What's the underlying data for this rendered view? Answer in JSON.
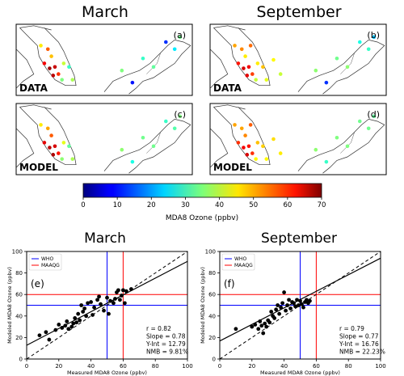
{
  "column_titles": [
    "March",
    "September"
  ],
  "maps": [
    {
      "panel": "(a)",
      "label": "DATA",
      "stations": [
        [
          0.18,
          0.35,
          55
        ],
        [
          0.2,
          0.45,
          48
        ],
        [
          0.16,
          0.55,
          62
        ],
        [
          0.19,
          0.62,
          68
        ],
        [
          0.22,
          0.6,
          65
        ],
        [
          0.24,
          0.7,
          58
        ],
        [
          0.21,
          0.72,
          66
        ],
        [
          0.27,
          0.55,
          40
        ],
        [
          0.3,
          0.6,
          30
        ],
        [
          0.26,
          0.78,
          35
        ],
        [
          0.14,
          0.3,
          45
        ],
        [
          0.32,
          0.78,
          38
        ],
        [
          0.6,
          0.65,
          35
        ],
        [
          0.72,
          0.48,
          30
        ],
        [
          0.85,
          0.25,
          12
        ],
        [
          0.9,
          0.35,
          25
        ],
        [
          0.66,
          0.82,
          10
        ],
        [
          0.93,
          0.18,
          34
        ],
        [
          0.78,
          0.6,
          33
        ]
      ]
    },
    {
      "panel": "(b)",
      "label": "DATA",
      "stations": [
        [
          0.18,
          0.35,
          52
        ],
        [
          0.2,
          0.45,
          45
        ],
        [
          0.16,
          0.55,
          60
        ],
        [
          0.19,
          0.62,
          64
        ],
        [
          0.22,
          0.6,
          62
        ],
        [
          0.24,
          0.7,
          57
        ],
        [
          0.21,
          0.72,
          63
        ],
        [
          0.27,
          0.55,
          45
        ],
        [
          0.3,
          0.6,
          48
        ],
        [
          0.26,
          0.78,
          40
        ],
        [
          0.14,
          0.3,
          50
        ],
        [
          0.32,
          0.78,
          42
        ],
        [
          0.6,
          0.65,
          36
        ],
        [
          0.72,
          0.48,
          34
        ],
        [
          0.85,
          0.25,
          28
        ],
        [
          0.9,
          0.35,
          30
        ],
        [
          0.66,
          0.82,
          12
        ],
        [
          0.93,
          0.18,
          22
        ],
        [
          0.78,
          0.6,
          36
        ],
        [
          0.36,
          0.5,
          44
        ],
        [
          0.4,
          0.7,
          40
        ],
        [
          0.23,
          0.3,
          54
        ]
      ]
    },
    {
      "panel": "(c)",
      "label": "MODEL",
      "stations": [
        [
          0.18,
          0.35,
          50
        ],
        [
          0.2,
          0.45,
          55
        ],
        [
          0.16,
          0.55,
          63
        ],
        [
          0.19,
          0.62,
          66
        ],
        [
          0.22,
          0.6,
          64
        ],
        [
          0.24,
          0.7,
          60
        ],
        [
          0.21,
          0.72,
          67
        ],
        [
          0.27,
          0.55,
          42
        ],
        [
          0.3,
          0.6,
          33
        ],
        [
          0.26,
          0.78,
          36
        ],
        [
          0.14,
          0.3,
          45
        ],
        [
          0.32,
          0.78,
          38
        ],
        [
          0.6,
          0.65,
          36
        ],
        [
          0.72,
          0.48,
          34
        ],
        [
          0.85,
          0.25,
          30
        ],
        [
          0.9,
          0.35,
          32
        ],
        [
          0.66,
          0.82,
          28
        ],
        [
          0.93,
          0.18,
          35
        ],
        [
          0.78,
          0.6,
          34
        ]
      ]
    },
    {
      "panel": "(d)",
      "label": "MODEL",
      "stations": [
        [
          0.18,
          0.35,
          50
        ],
        [
          0.2,
          0.45,
          52
        ],
        [
          0.16,
          0.55,
          58
        ],
        [
          0.19,
          0.62,
          62
        ],
        [
          0.22,
          0.6,
          60
        ],
        [
          0.24,
          0.7,
          58
        ],
        [
          0.21,
          0.72,
          64
        ],
        [
          0.27,
          0.55,
          48
        ],
        [
          0.3,
          0.6,
          47
        ],
        [
          0.26,
          0.78,
          44
        ],
        [
          0.14,
          0.3,
          50
        ],
        [
          0.32,
          0.78,
          44
        ],
        [
          0.6,
          0.65,
          36
        ],
        [
          0.72,
          0.48,
          35
        ],
        [
          0.85,
          0.25,
          34
        ],
        [
          0.9,
          0.35,
          34
        ],
        [
          0.66,
          0.82,
          30
        ],
        [
          0.93,
          0.18,
          33
        ],
        [
          0.78,
          0.6,
          35
        ],
        [
          0.36,
          0.5,
          46
        ],
        [
          0.4,
          0.7,
          45
        ],
        [
          0.23,
          0.3,
          55
        ]
      ]
    }
  ],
  "colorbar": {
    "label": "MDA8 Ozone (ppbv)",
    "ticks": [
      0,
      10,
      20,
      30,
      40,
      50,
      60,
      70
    ],
    "range": [
      0,
      70
    ],
    "colormap": "jet"
  },
  "chart_data": [
    {
      "type": "scatter",
      "title": "March",
      "panel": "(e)",
      "xlabel": "Measured MDA8 Ozone (ppbv)",
      "ylabel": "Modeled MDA8 Ozone (ppbv)",
      "xlim": [
        0,
        100
      ],
      "ylim": [
        0,
        100
      ],
      "xticks": [
        0,
        20,
        40,
        60,
        80,
        100
      ],
      "yticks": [
        0,
        20,
        40,
        60,
        80,
        100
      ],
      "x": [
        8,
        12,
        14,
        18,
        20,
        22,
        24,
        25,
        26,
        28,
        29,
        30,
        31,
        32,
        33,
        34,
        35,
        36,
        37,
        38,
        40,
        41,
        42,
        44,
        45,
        46,
        48,
        50,
        51,
        52,
        54,
        55,
        56,
        57,
        58,
        59,
        60,
        61,
        62,
        65
      ],
      "y": [
        22,
        25,
        18,
        27,
        32,
        29,
        31,
        35,
        28,
        30,
        33,
        38,
        34,
        42,
        36,
        50,
        44,
        47,
        40,
        52,
        53,
        41,
        48,
        55,
        58,
        51,
        45,
        57,
        42,
        54,
        52,
        56,
        62,
        64,
        55,
        59,
        64,
        52,
        63,
        65
      ],
      "fit": {
        "slope": 0.78,
        "intercept": 12.79
      },
      "one_to_one": true,
      "hlines": [
        {
          "y": 50,
          "color": "#0000ff"
        },
        {
          "y": 60,
          "color": "#ff0000"
        }
      ],
      "vlines": [
        {
          "x": 50,
          "color": "#0000ff"
        },
        {
          "x": 60,
          "color": "#ff0000"
        }
      ],
      "legend": [
        {
          "name": "WHO",
          "color": "#0000ff"
        },
        {
          "name": "MAAQG",
          "color": "#ff0000"
        }
      ],
      "legend_position": "top-left",
      "stats": [
        "r = 0.82",
        "Slope = 0.78",
        "Y-Int = 12.79",
        "NMB = 9.81%"
      ],
      "grid": false
    },
    {
      "type": "scatter",
      "title": "September",
      "panel": "(f)",
      "xlabel": "Measured MDA8 Ozone (ppbv)",
      "ylabel": "Modeled MDA8 Ozone (ppbv)",
      "xlim": [
        0,
        100
      ],
      "ylim": [
        0,
        100
      ],
      "xticks": [
        0,
        20,
        40,
        60,
        80,
        100
      ],
      "yticks": [
        0,
        20,
        40,
        60,
        80,
        100
      ],
      "x": [
        10,
        20,
        22,
        24,
        25,
        26,
        27,
        28,
        29,
        30,
        31,
        32,
        33,
        34,
        35,
        36,
        37,
        38,
        39,
        40,
        41,
        42,
        43,
        44,
        45,
        46,
        47,
        48,
        49,
        50,
        51,
        52,
        53,
        54,
        55,
        56
      ],
      "y": [
        28,
        30,
        32,
        28,
        35,
        31,
        24,
        33,
        30,
        36,
        34,
        44,
        40,
        38,
        46,
        50,
        42,
        48,
        52,
        62,
        45,
        50,
        55,
        47,
        53,
        52,
        49,
        55,
        50,
        54,
        51,
        48,
        53,
        55,
        52,
        54
      ],
      "fit": {
        "slope": 0.77,
        "intercept": 16.76
      },
      "one_to_one": true,
      "hlines": [
        {
          "y": 50,
          "color": "#0000ff"
        },
        {
          "y": 60,
          "color": "#ff0000"
        }
      ],
      "vlines": [
        {
          "x": 50,
          "color": "#0000ff"
        },
        {
          "x": 60,
          "color": "#ff0000"
        }
      ],
      "legend": [
        {
          "name": "WHO",
          "color": "#0000ff"
        },
        {
          "name": "MAAQG",
          "color": "#ff0000"
        }
      ],
      "legend_position": "top-left",
      "stats": [
        "r = 0.79",
        "Slope = 0.77",
        "Y-Int = 16.76",
        "NMB = 22.23%"
      ],
      "grid": false
    }
  ]
}
